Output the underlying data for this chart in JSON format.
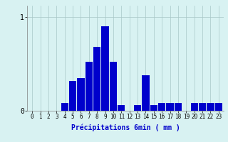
{
  "xlabel": "Précipitations 6min ( mm )",
  "background_color": "#d8f2f2",
  "bar_color": "#0000cc",
  "xlim": [
    -0.6,
    23.6
  ],
  "ylim": [
    0,
    1.12
  ],
  "yticks": [
    0,
    1
  ],
  "ytick_labels": [
    "0",
    "1"
  ],
  "xticks": [
    0,
    1,
    2,
    3,
    4,
    5,
    6,
    7,
    8,
    9,
    10,
    11,
    12,
    13,
    14,
    15,
    16,
    17,
    18,
    19,
    20,
    21,
    22,
    23
  ],
  "values": [
    0,
    0,
    0,
    0,
    0.08,
    0.32,
    0.35,
    0.52,
    0.68,
    0.9,
    0.52,
    0.06,
    0.0,
    0.06,
    0.38,
    0.06,
    0.08,
    0.08,
    0.08,
    0.0,
    0.08,
    0.08,
    0.08,
    0.08
  ]
}
